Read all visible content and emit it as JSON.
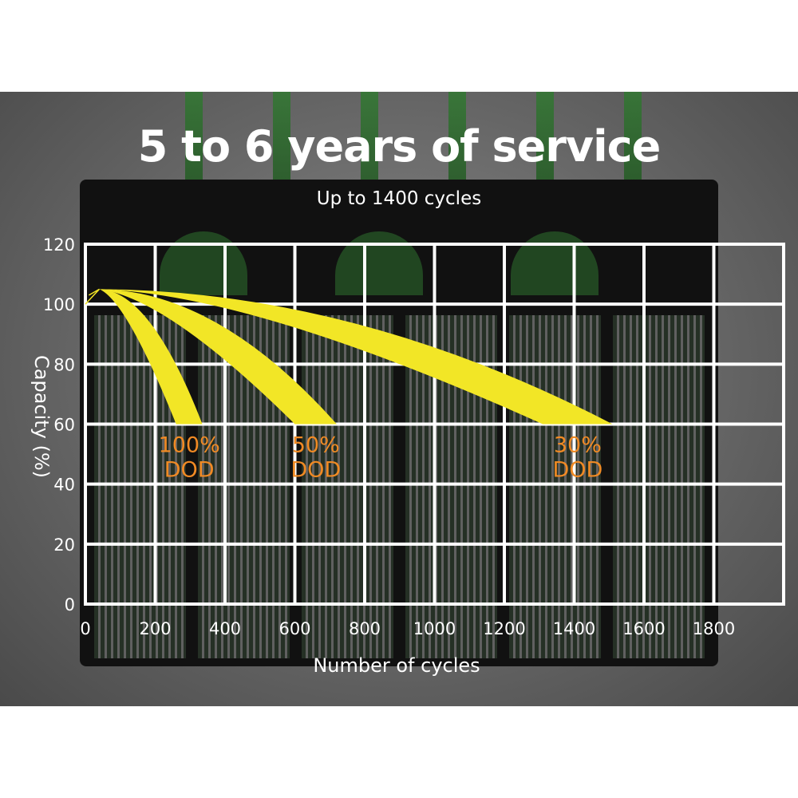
{
  "chart_data": {
    "type": "line",
    "title": "5 to 6 years of service",
    "subtitle": "Up to 1400 cycles",
    "xlabel": "Number of cycles",
    "ylabel": "Capacity (%)",
    "xlim": [
      0,
      2000
    ],
    "ylim": [
      0,
      120
    ],
    "x_ticks": [
      "0",
      "200",
      "400",
      "600",
      "800",
      "1000",
      "1200",
      "1400",
      "1600",
      "1800"
    ],
    "y_ticks": [
      "0",
      "20",
      "40",
      "60",
      "80",
      "100",
      "120"
    ],
    "grid": true,
    "series": [
      {
        "name": "100% DOD",
        "label_lines": [
          "100%",
          "DOD"
        ],
        "start": [
          40,
          105
        ],
        "end_cycles": [
          260,
          335
        ],
        "end_capacity": 60
      },
      {
        "name": "50% DOD",
        "label_lines": [
          "50%",
          "DOD"
        ],
        "start": [
          40,
          105
        ],
        "end_cycles": [
          600,
          720
        ],
        "end_capacity": 60
      },
      {
        "name": "30% DOD",
        "label_lines": [
          "30%",
          "DOD"
        ],
        "start": [
          40,
          105
        ],
        "end_cycles": [
          1310,
          1510
        ],
        "end_capacity": 60
      }
    ],
    "colors": {
      "curve": "#f2e626",
      "label": "#f08a24",
      "grid": "#ffffff"
    }
  }
}
